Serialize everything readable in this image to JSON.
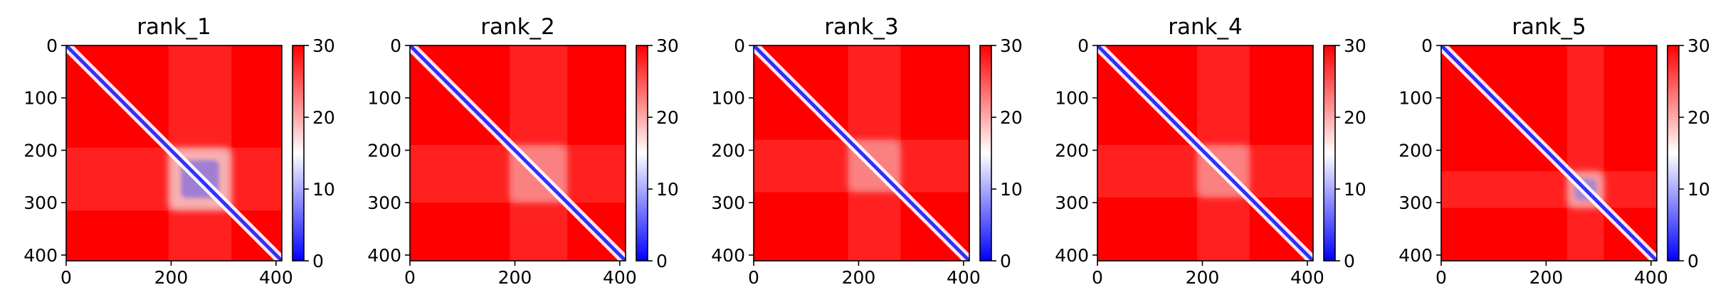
{
  "chart_data": [
    {
      "type": "heatmap",
      "title": "rank_1",
      "xlabel": "",
      "ylabel": "",
      "xlim": [
        0,
        411
      ],
      "ylim": [
        411,
        0
      ],
      "xticks": [
        "0",
        "200",
        "400"
      ],
      "yticks": [
        "0",
        "100",
        "200",
        "300",
        "400"
      ],
      "colorbar": {
        "range": [
          0,
          30
        ],
        "ticks": [
          "0",
          "10",
          "20",
          "30"
        ],
        "colormap": "bwr"
      },
      "features": {
        "diagonal_band": "blue",
        "low_distance_blocks": [
          {
            "x": [
              195,
              315
            ],
            "y": [
              195,
              315
            ],
            "level": "strong"
          }
        ]
      }
    },
    {
      "type": "heatmap",
      "title": "rank_2",
      "xlabel": "",
      "ylabel": "",
      "xlim": [
        0,
        411
      ],
      "ylim": [
        411,
        0
      ],
      "xticks": [
        "0",
        "200",
        "400"
      ],
      "yticks": [
        "0",
        "100",
        "200",
        "300",
        "400"
      ],
      "colorbar": {
        "range": [
          0,
          30
        ],
        "ticks": [
          "0",
          "10",
          "20",
          "30"
        ],
        "colormap": "bwr"
      },
      "features": {
        "diagonal_band": "blue",
        "low_distance_blocks": [
          {
            "x": [
              190,
              300
            ],
            "y": [
              190,
              300
            ],
            "level": "weak"
          }
        ]
      }
    },
    {
      "type": "heatmap",
      "title": "rank_3",
      "xlabel": "",
      "ylabel": "",
      "xlim": [
        0,
        411
      ],
      "ylim": [
        411,
        0
      ],
      "xticks": [
        "0",
        "200",
        "400"
      ],
      "yticks": [
        "0",
        "100",
        "200",
        "300",
        "400"
      ],
      "colorbar": {
        "range": [
          0,
          30
        ],
        "ticks": [
          "0",
          "10",
          "20",
          "30"
        ],
        "colormap": "bwr"
      },
      "features": {
        "diagonal_band": "blue",
        "low_distance_blocks": [
          {
            "x": [
              180,
              280
            ],
            "y": [
              180,
              280
            ],
            "level": "weak"
          }
        ]
      }
    },
    {
      "type": "heatmap",
      "title": "rank_4",
      "xlabel": "",
      "ylabel": "",
      "xlim": [
        0,
        411
      ],
      "ylim": [
        411,
        0
      ],
      "xticks": [
        "0",
        "200",
        "400"
      ],
      "yticks": [
        "0",
        "100",
        "200",
        "300",
        "400"
      ],
      "colorbar": {
        "range": [
          0,
          30
        ],
        "ticks": [
          "0",
          "10",
          "20",
          "30"
        ],
        "colormap": "bwr"
      },
      "features": {
        "diagonal_band": "blue",
        "low_distance_blocks": [
          {
            "x": [
              190,
              290
            ],
            "y": [
              190,
              290
            ],
            "level": "weak"
          }
        ]
      }
    },
    {
      "type": "heatmap",
      "title": "rank_5",
      "xlabel": "",
      "ylabel": "",
      "xlim": [
        0,
        411
      ],
      "ylim": [
        411,
        0
      ],
      "xticks": [
        "0",
        "200",
        "400"
      ],
      "yticks": [
        "0",
        "100",
        "200",
        "300",
        "400"
      ],
      "colorbar": {
        "range": [
          0,
          30
        ],
        "ticks": [
          "0",
          "10",
          "20",
          "30"
        ],
        "colormap": "bwr"
      },
      "features": {
        "diagonal_band": "blue",
        "low_distance_blocks": [
          {
            "x": [
              240,
              310
            ],
            "y": [
              240,
              310
            ],
            "level": "medium"
          }
        ]
      }
    }
  ],
  "colors": {
    "high": "#ff0000",
    "mid": "#ffffff",
    "low": "#0000ff",
    "axis": "#000000"
  }
}
